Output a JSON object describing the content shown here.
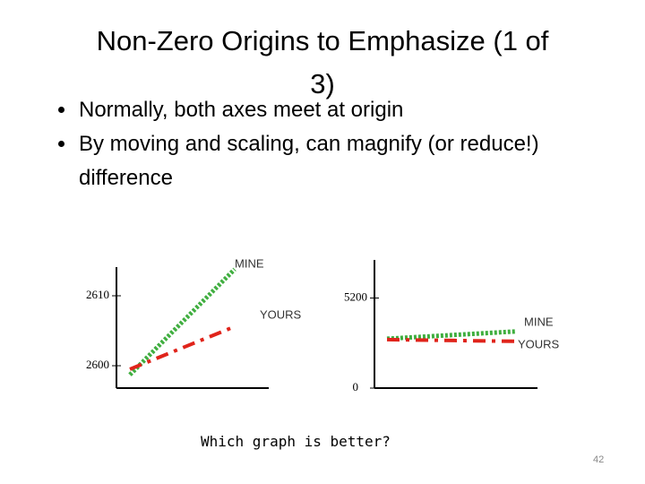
{
  "slide": {
    "title": "Non-Zero Origins to Emphasize (1 of 3)",
    "bullets": [
      "Normally, both axes meet at origin",
      "By moving and scaling, can magnify (or reduce!) difference"
    ],
    "question": "Which graph is better?",
    "page_number": "42"
  },
  "chart_data": [
    {
      "type": "line",
      "categories": [
        null,
        null
      ],
      "ylim": [
        2596.8,
        2614.1
      ],
      "yticks": [
        2600,
        2610
      ],
      "series": [
        {
          "name": "MINE",
          "color": "#3fae3f",
          "linestyle": "dotted",
          "values": [
            2598.7,
            2613.8
          ]
        },
        {
          "name": "YOURS",
          "color": "#e0241b",
          "linestyle": "dashdot",
          "values": [
            2599.5,
            2605.6
          ]
        }
      ]
    },
    {
      "type": "line",
      "categories": [
        null,
        null
      ],
      "ylim": [
        0,
        7400
      ],
      "yticks": [
        0,
        5200
      ],
      "series": [
        {
          "name": "MINE",
          "color": "#3fae3f",
          "linestyle": "dotted",
          "values": [
            2850,
            3270
          ]
        },
        {
          "name": "YOURS",
          "color": "#e0241b",
          "linestyle": "dashdot",
          "values": [
            2800,
            2700
          ]
        }
      ]
    }
  ]
}
